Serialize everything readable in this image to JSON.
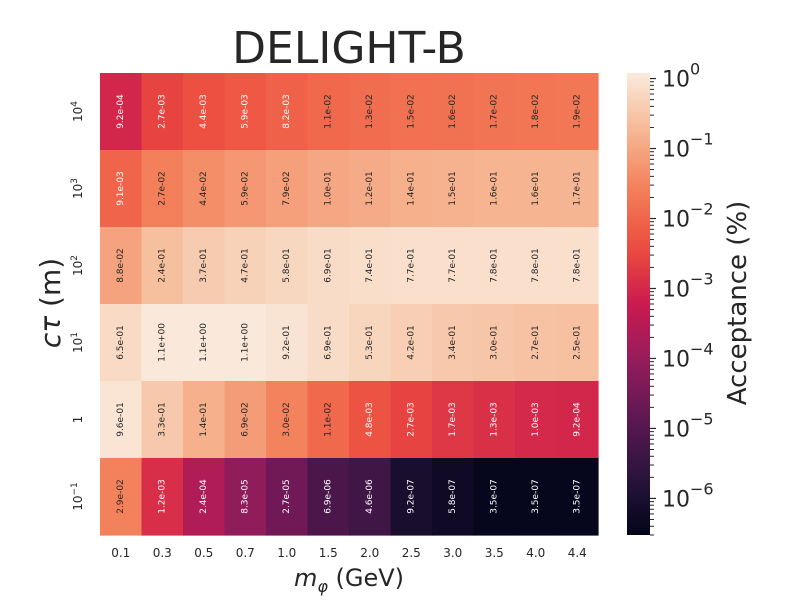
{
  "chart_data": {
    "type": "heatmap",
    "title": "DELIGHT-B",
    "xlabel": "m_φ (GeV)",
    "ylabel": "cτ (m)",
    "colorbar_label": "Acceptance (%)",
    "x_categories": [
      "0.1",
      "0.3",
      "0.5",
      "0.7",
      "1.0",
      "1.5",
      "2.0",
      "2.5",
      "3.0",
      "3.5",
      "4.0",
      "4.4"
    ],
    "y_categories": [
      "10^4",
      "10^3",
      "10^2",
      "10^1",
      "1",
      "10^-1"
    ],
    "color_scale": "log",
    "color_range": [
      3e-07,
      1.2
    ],
    "colorbar_ticks": [
      {
        "base": "10",
        "exp": "0",
        "value": 1
      },
      {
        "base": "10",
        "exp": "−1",
        "value": 0.1
      },
      {
        "base": "10",
        "exp": "−2",
        "value": 0.01
      },
      {
        "base": "10",
        "exp": "−3",
        "value": 0.001
      },
      {
        "base": "10",
        "exp": "−4",
        "value": 0.0001
      },
      {
        "base": "10",
        "exp": "−5",
        "value": 1e-05
      },
      {
        "base": "10",
        "exp": "−6",
        "value": 1e-06
      }
    ],
    "values": [
      [
        "9.2e-04",
        "2.7e-03",
        "4.4e-03",
        "5.9e-03",
        "8.2e-03",
        "1.1e-02",
        "1.3e-02",
        "1.5e-02",
        "1.6e-02",
        "1.7e-02",
        "1.8e-02",
        "1.9e-02"
      ],
      [
        "9.1e-03",
        "2.7e-02",
        "4.4e-02",
        "5.9e-02",
        "7.9e-02",
        "1.0e-01",
        "1.2e-01",
        "1.4e-01",
        "1.5e-01",
        "1.6e-01",
        "1.6e-01",
        "1.7e-01"
      ],
      [
        "8.8e-02",
        "2.4e-01",
        "3.7e-01",
        "4.7e-01",
        "5.8e-01",
        "6.9e-01",
        "7.4e-01",
        "7.7e-01",
        "7.7e-01",
        "7.8e-01",
        "7.8e-01",
        "7.8e-01"
      ],
      [
        "6.5e-01",
        "1.1e+00",
        "1.1e+00",
        "1.1e+00",
        "9.2e-01",
        "6.9e-01",
        "5.3e-01",
        "4.2e-01",
        "3.4e-01",
        "3.0e-01",
        "2.7e-01",
        "2.5e-01"
      ],
      [
        "9.6e-01",
        "3.3e-01",
        "1.4e-01",
        "6.9e-02",
        "3.0e-02",
        "1.1e-02",
        "4.8e-03",
        "2.7e-03",
        "1.7e-03",
        "1.3e-03",
        "1.0e-03",
        "9.2e-04"
      ],
      [
        "2.9e-02",
        "1.2e-03",
        "2.4e-04",
        "8.3e-05",
        "2.7e-05",
        "6.9e-06",
        "4.6e-06",
        "9.2e-07",
        "5.8e-07",
        "3.5e-07",
        "3.5e-07",
        "3.5e-07"
      ]
    ]
  }
}
